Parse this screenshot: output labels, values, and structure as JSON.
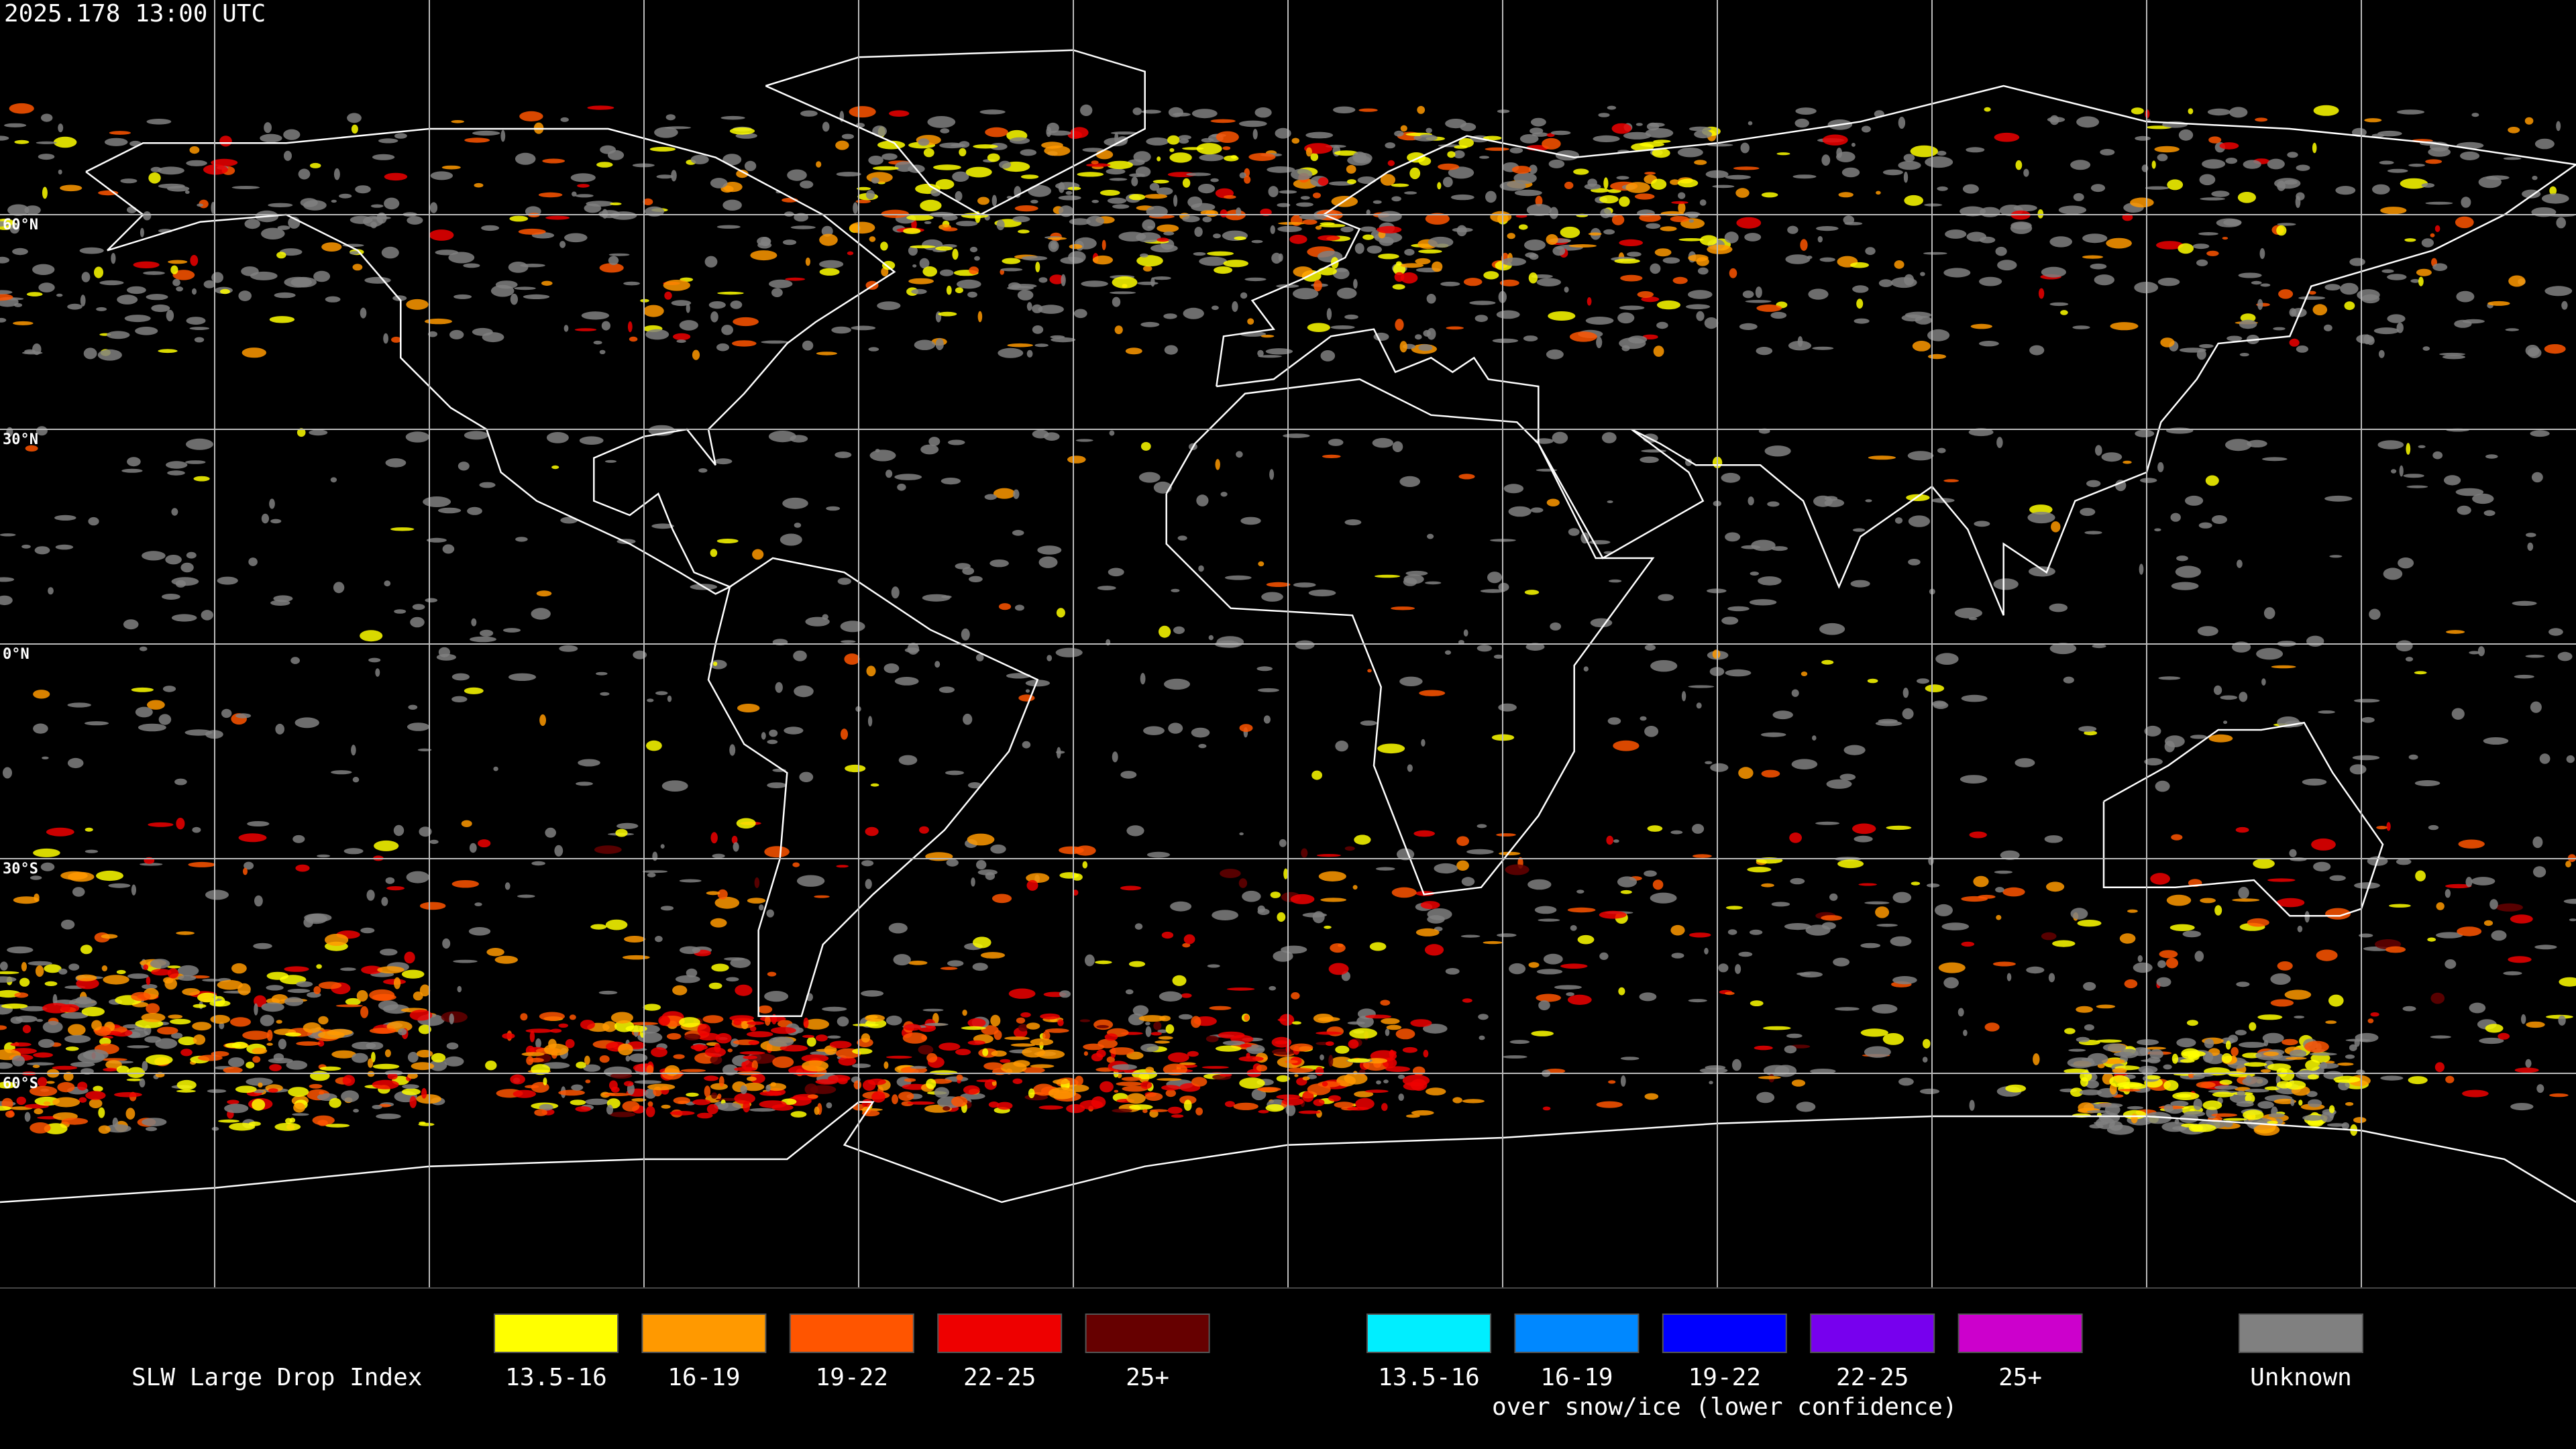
{
  "header": {
    "timestamp": "2025.178 13:00 UTC"
  },
  "map": {
    "latitude_labels": [
      "60°N",
      "30°N",
      "0°N",
      "30°S",
      "60°S"
    ]
  },
  "legend": {
    "title": "SLW Large Drop Index",
    "groups": [
      {
        "items": [
          {
            "label": "13.5-16",
            "color": "#ffff00"
          },
          {
            "label": "16-19",
            "color": "#ff9900"
          },
          {
            "label": "19-22",
            "color": "#ff5500"
          },
          {
            "label": "22-25",
            "color": "#ee0000"
          },
          {
            "label": "25+",
            "color": "#660000"
          }
        ]
      },
      {
        "items": [
          {
            "label": "13.5-16",
            "color": "#00eeff"
          },
          {
            "label": "16-19",
            "color": "#0088ff"
          },
          {
            "label": "19-22",
            "color": "#0000ff"
          },
          {
            "label": "22-25",
            "color": "#7700ee"
          },
          {
            "label": "25+",
            "color": "#cc00cc"
          }
        ],
        "caption": "over snow/ice (lower confidence)"
      }
    ],
    "unknown": {
      "label": "Unknown",
      "color": "#808080"
    }
  }
}
